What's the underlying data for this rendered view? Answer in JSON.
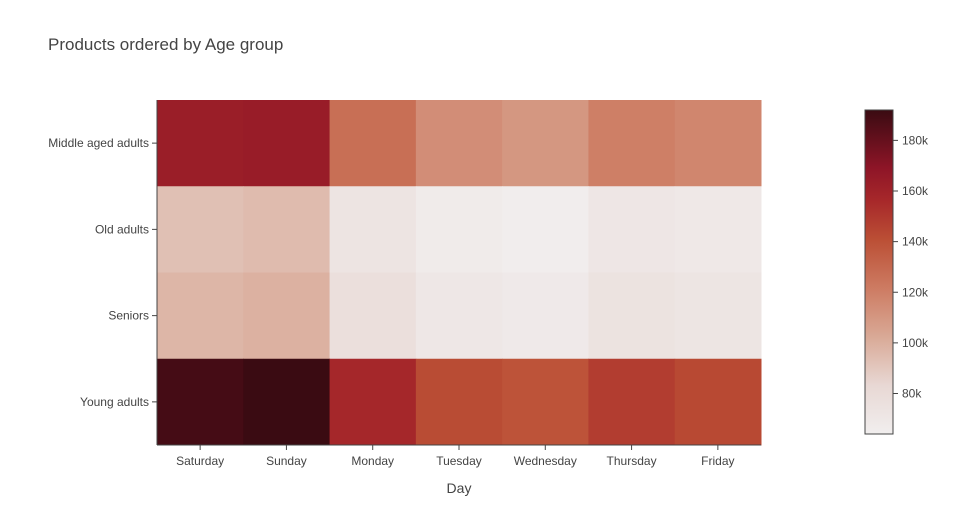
{
  "chart_data": {
    "type": "heatmap",
    "title": "Products ordered by Age group",
    "xlabel": "Day",
    "ylabel": "",
    "x_categories": [
      "Saturday",
      "Sunday",
      "Monday",
      "Tuesday",
      "Wednesday",
      "Thursday",
      "Friday"
    ],
    "y_categories": [
      "Middle aged adults",
      "Old adults",
      "Seniors",
      "Young adults"
    ],
    "z": [
      [
        163000,
        164000,
        127000,
        114000,
        110000,
        120000,
        117000
      ],
      [
        93000,
        95000,
        73000,
        67000,
        65000,
        71000,
        69000
      ],
      [
        97000,
        99000,
        77000,
        70000,
        68000,
        74000,
        72000
      ],
      [
        189000,
        192000,
        157000,
        142000,
        139000,
        148000,
        143000
      ]
    ],
    "colorscale": {
      "zmin": 64000,
      "zmax": 192000,
      "stops": [
        [
          0.0,
          "#f1eeee"
        ],
        [
          0.15,
          "#e8d8d4"
        ],
        [
          0.3,
          "#d9a996"
        ],
        [
          0.45,
          "#cd7b62"
        ],
        [
          0.6,
          "#bb4f35"
        ],
        [
          0.72,
          "#a7282a"
        ],
        [
          0.82,
          "#8e1527"
        ],
        [
          1.0,
          "#3a0b12"
        ]
      ]
    },
    "colorbar": {
      "ticks": [
        80000,
        100000,
        120000,
        140000,
        160000,
        180000
      ],
      "tick_labels": [
        "80k",
        "100k",
        "120k",
        "140k",
        "160k",
        "180k"
      ]
    }
  }
}
